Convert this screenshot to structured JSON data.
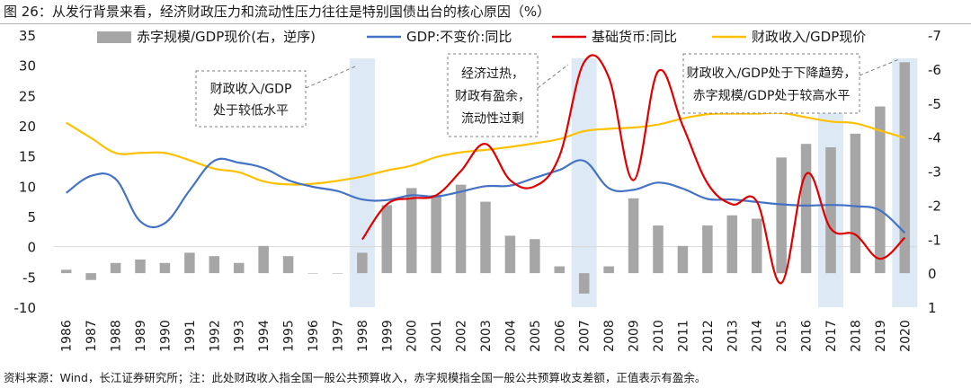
{
  "title": "图 26：从发行背景来看，经济财政压力和流动性压力往往是特别国债出台的核心原因（%）",
  "footer": "资料来源：Wind，长江证券研究所；注：此处财政收入指全国一般公共预算收入，赤字规模指全国一般公共预算收支差额，正值表示有盈余。",
  "colors": {
    "bar": "#a6a6a6",
    "gdp": "#4472c4",
    "base_money": "#e00000",
    "fiscal": "#ffc000",
    "highlight": "#dde9f4"
  },
  "chart_data": {
    "type": "bar+line",
    "categories": [
      "1986",
      "1987",
      "1988",
      "1989",
      "1990",
      "1991",
      "1992",
      "1993",
      "1994",
      "1995",
      "1996",
      "1997",
      "1998",
      "1999",
      "2000",
      "2001",
      "2002",
      "2003",
      "2004",
      "2005",
      "2006",
      "2007",
      "2008",
      "2009",
      "2010",
      "2011",
      "2012",
      "2013",
      "2014",
      "2015",
      "2016",
      "2017",
      "2018",
      "2019",
      "2020"
    ],
    "left_axis": {
      "min": -10,
      "max": 35,
      "ticks": [
        35,
        30,
        25,
        20,
        15,
        10,
        5,
        0,
        -5,
        -10
      ]
    },
    "right_axis": {
      "min": -7,
      "max": 1,
      "inverted": true,
      "ticks": [
        -7,
        -6,
        -5,
        -4,
        -3,
        -2,
        -1,
        0,
        1
      ]
    },
    "highlight_years": [
      "1998",
      "2007",
      "2017",
      "2020"
    ],
    "series": [
      {
        "name": "赤字规模/GDP现价(右，逆序)",
        "type": "bar",
        "axis": "right",
        "values": [
          -0.1,
          0.2,
          -0.3,
          -0.4,
          -0.3,
          -0.6,
          -0.5,
          -0.3,
          -0.8,
          -0.5,
          0.0,
          0.0,
          -0.6,
          -2.0,
          -2.5,
          -2.3,
          -2.6,
          -2.1,
          -1.1,
          -1.0,
          -0.2,
          0.6,
          -0.2,
          -2.2,
          -1.4,
          -0.8,
          -1.4,
          -1.7,
          -1.6,
          -3.4,
          -3.8,
          -3.7,
          -4.1,
          -4.9,
          -6.2
        ]
      },
      {
        "name": "GDP:不变价:同比",
        "type": "line",
        "axis": "left",
        "values": [
          8.9,
          11.7,
          11.2,
          4.2,
          3.9,
          9.3,
          14.2,
          13.9,
          13.0,
          11.0,
          9.9,
          9.2,
          7.8,
          7.7,
          8.5,
          8.3,
          9.1,
          10.0,
          10.1,
          11.4,
          12.7,
          14.2,
          9.7,
          9.4,
          10.6,
          9.6,
          7.9,
          7.8,
          7.4,
          7.0,
          6.8,
          6.9,
          6.7,
          6.0,
          2.3
        ]
      },
      {
        "name": "基础货币:同比",
        "type": "line",
        "axis": "left",
        "values": [
          null,
          null,
          null,
          null,
          null,
          null,
          null,
          null,
          null,
          null,
          null,
          null,
          1.2,
          7.0,
          8.0,
          8.5,
          12.5,
          17.0,
          11.0,
          10.0,
          15.0,
          30.5,
          28.0,
          11.0,
          29.0,
          20.0,
          10.5,
          7.0,
          7.5,
          -6.0,
          12.0,
          3.0,
          2.0,
          -2.0,
          1.5
        ]
      },
      {
        "name": "财政收入/GDP现价",
        "type": "line",
        "axis": "left",
        "values": [
          20.5,
          18.0,
          15.5,
          15.5,
          15.5,
          14.3,
          12.9,
          12.3,
          10.8,
          10.3,
          10.4,
          10.9,
          11.6,
          12.6,
          13.4,
          14.8,
          15.6,
          16.0,
          16.5,
          17.1,
          17.8,
          19.1,
          19.5,
          19.7,
          20.2,
          21.2,
          21.9,
          22.0,
          22.0,
          22.1,
          21.4,
          20.7,
          20.4,
          19.2,
          18.0
        ]
      }
    ],
    "annotations": [
      {
        "lines": [
          "财政收入/GDP",
          "处于较低水平"
        ]
      },
      {
        "lines": [
          "经济过热，",
          "财政有盈余，",
          "流动性过剩"
        ]
      },
      {
        "lines": [
          "财政收入/GDP处于下降趋势，",
          "赤字规模/GDP处于较高水平"
        ]
      }
    ]
  }
}
